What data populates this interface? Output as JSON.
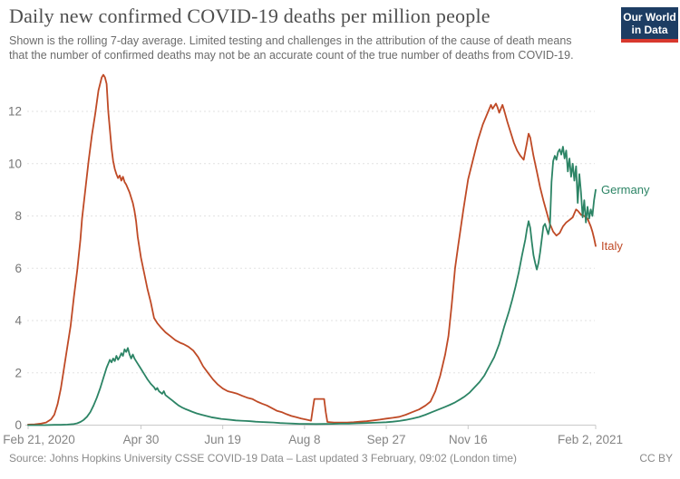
{
  "header": {
    "title": "Daily new confirmed COVID-19 deaths per million people",
    "subtitle_line1": "Shown is the rolling 7-day average. Limited testing and challenges in the attribution of the cause of death means",
    "subtitle_line2": "that the number of confirmed deaths may not be an accurate count of the true number of deaths from COVID-19.",
    "logo_line1": "Our World",
    "logo_line2": "in Data",
    "logo_bg_color": "#1d3d63",
    "logo_stripe_color": "#d8382e"
  },
  "footer": {
    "source": "Source: Johns Hopkins University CSSE COVID-19 Data – Last updated 3 February, 09:02 (London time)",
    "license": "CC BY"
  },
  "chart_data": {
    "type": "line",
    "title": "Daily new confirmed COVID-19 deaths per million people",
    "x_axis": {
      "unit": "date",
      "start_date": "Feb 21, 2020",
      "end_date": "Feb 2, 2021",
      "ticks": [
        {
          "label": "Feb 21, 2020",
          "day": 0
        },
        {
          "label": "Apr 30",
          "day": 69
        },
        {
          "label": "Jun 19",
          "day": 119
        },
        {
          "label": "Aug 8",
          "day": 169
        },
        {
          "label": "Sep 27",
          "day": 219
        },
        {
          "label": "Nov 16",
          "day": 269
        },
        {
          "label": "Feb 2, 2021",
          "day": 347
        }
      ]
    },
    "y_axis": {
      "ticks": [
        0,
        2,
        4,
        6,
        8,
        10,
        12
      ],
      "range": [
        0,
        13.4
      ],
      "gridlines": true
    },
    "legend_position": "end-of-line-labels",
    "series": [
      {
        "name": "Italy",
        "color": "#bf4a26",
        "points": [
          [
            0,
            0.02
          ],
          [
            4,
            0.03
          ],
          [
            8,
            0.06
          ],
          [
            11,
            0.1
          ],
          [
            14,
            0.22
          ],
          [
            16,
            0.4
          ],
          [
            18,
            0.8
          ],
          [
            20,
            1.4
          ],
          [
            22,
            2.2
          ],
          [
            24,
            3.0
          ],
          [
            26,
            3.8
          ],
          [
            28,
            4.9
          ],
          [
            30,
            5.9
          ],
          [
            32,
            7.1
          ],
          [
            33,
            7.9
          ],
          [
            35,
            9.0
          ],
          [
            37,
            10.1
          ],
          [
            39,
            11.1
          ],
          [
            41,
            11.9
          ],
          [
            43,
            12.8
          ],
          [
            45,
            13.3
          ],
          [
            46,
            13.4
          ],
          [
            47,
            13.3
          ],
          [
            48,
            13.05
          ],
          [
            49,
            12.0
          ],
          [
            50,
            11.3
          ],
          [
            51,
            10.6
          ],
          [
            52,
            10.1
          ],
          [
            53,
            9.8
          ],
          [
            54,
            9.6
          ],
          [
            55,
            9.45
          ],
          [
            56,
            9.55
          ],
          [
            57,
            9.35
          ],
          [
            58,
            9.5
          ],
          [
            59,
            9.3
          ],
          [
            60,
            9.2
          ],
          [
            62,
            8.9
          ],
          [
            64,
            8.5
          ],
          [
            65,
            8.2
          ],
          [
            66,
            7.8
          ],
          [
            67,
            7.2
          ],
          [
            69,
            6.4
          ],
          [
            71,
            5.8
          ],
          [
            73,
            5.2
          ],
          [
            75,
            4.7
          ],
          [
            77,
            4.1
          ],
          [
            79,
            3.9
          ],
          [
            81,
            3.75
          ],
          [
            84,
            3.55
          ],
          [
            87,
            3.4
          ],
          [
            90,
            3.25
          ],
          [
            93,
            3.15
          ],
          [
            95,
            3.1
          ],
          [
            98,
            3.0
          ],
          [
            101,
            2.85
          ],
          [
            104,
            2.6
          ],
          [
            107,
            2.25
          ],
          [
            110,
            2.0
          ],
          [
            113,
            1.75
          ],
          [
            116,
            1.55
          ],
          [
            119,
            1.4
          ],
          [
            122,
            1.3
          ],
          [
            125,
            1.25
          ],
          [
            128,
            1.2
          ],
          [
            131,
            1.12
          ],
          [
            134,
            1.05
          ],
          [
            137,
            1.0
          ],
          [
            140,
            0.9
          ],
          [
            143,
            0.82
          ],
          [
            146,
            0.75
          ],
          [
            149,
            0.65
          ],
          [
            152,
            0.55
          ],
          [
            155,
            0.5
          ],
          [
            158,
            0.42
          ],
          [
            161,
            0.35
          ],
          [
            164,
            0.3
          ],
          [
            167,
            0.25
          ],
          [
            170,
            0.21
          ],
          [
            173,
            0.17
          ],
          [
            174,
            0.6
          ],
          [
            175,
            1.0
          ],
          [
            181,
            1.0
          ],
          [
            182,
            0.5
          ],
          [
            183,
            0.12
          ],
          [
            187,
            0.1
          ],
          [
            191,
            0.1
          ],
          [
            195,
            0.1
          ],
          [
            199,
            0.11
          ],
          [
            203,
            0.13
          ],
          [
            207,
            0.15
          ],
          [
            211,
            0.18
          ],
          [
            215,
            0.21
          ],
          [
            219,
            0.25
          ],
          [
            223,
            0.28
          ],
          [
            227,
            0.32
          ],
          [
            231,
            0.4
          ],
          [
            235,
            0.5
          ],
          [
            239,
            0.6
          ],
          [
            243,
            0.75
          ],
          [
            246,
            0.9
          ],
          [
            249,
            1.3
          ],
          [
            252,
            1.9
          ],
          [
            255,
            2.7
          ],
          [
            257,
            3.4
          ],
          [
            259,
            4.6
          ],
          [
            261,
            6.0
          ],
          [
            263,
            6.9
          ],
          [
            266,
            8.2
          ],
          [
            269,
            9.4
          ],
          [
            272,
            10.15
          ],
          [
            275,
            10.9
          ],
          [
            278,
            11.5
          ],
          [
            281,
            11.95
          ],
          [
            283,
            12.25
          ],
          [
            284,
            12.1
          ],
          [
            286,
            12.3
          ],
          [
            287,
            12.15
          ],
          [
            288,
            11.95
          ],
          [
            290,
            12.25
          ],
          [
            291,
            12.05
          ],
          [
            293,
            11.6
          ],
          [
            295,
            11.2
          ],
          [
            297,
            10.8
          ],
          [
            299,
            10.5
          ],
          [
            301,
            10.3
          ],
          [
            303,
            10.15
          ],
          [
            305,
            10.8
          ],
          [
            306,
            11.15
          ],
          [
            307,
            11.0
          ],
          [
            309,
            10.3
          ],
          [
            311,
            9.7
          ],
          [
            313,
            9.1
          ],
          [
            315,
            8.6
          ],
          [
            317,
            8.15
          ],
          [
            319,
            7.7
          ],
          [
            321,
            7.4
          ],
          [
            323,
            7.25
          ],
          [
            325,
            7.35
          ],
          [
            327,
            7.6
          ],
          [
            329,
            7.75
          ],
          [
            331,
            7.85
          ],
          [
            333,
            7.95
          ],
          [
            334,
            8.1
          ],
          [
            335,
            8.25
          ],
          [
            336,
            8.2
          ],
          [
            338,
            8.05
          ],
          [
            340,
            8.0
          ],
          [
            342,
            7.9
          ],
          [
            344,
            7.6
          ],
          [
            345,
            7.4
          ],
          [
            346,
            7.15
          ],
          [
            347,
            6.85
          ]
        ]
      },
      {
        "name": "Germany",
        "color": "#2c8465",
        "points": [
          [
            0,
            0
          ],
          [
            10,
            0
          ],
          [
            16,
            0.01
          ],
          [
            20,
            0.01
          ],
          [
            24,
            0.02
          ],
          [
            28,
            0.04
          ],
          [
            30,
            0.07
          ],
          [
            32,
            0.12
          ],
          [
            34,
            0.2
          ],
          [
            36,
            0.32
          ],
          [
            38,
            0.5
          ],
          [
            40,
            0.75
          ],
          [
            42,
            1.05
          ],
          [
            44,
            1.4
          ],
          [
            46,
            1.8
          ],
          [
            48,
            2.2
          ],
          [
            49,
            2.35
          ],
          [
            50,
            2.5
          ],
          [
            51,
            2.4
          ],
          [
            52,
            2.55
          ],
          [
            53,
            2.45
          ],
          [
            54,
            2.65
          ],
          [
            55,
            2.5
          ],
          [
            56,
            2.6
          ],
          [
            57,
            2.75
          ],
          [
            58,
            2.65
          ],
          [
            59,
            2.9
          ],
          [
            60,
            2.8
          ],
          [
            61,
            2.95
          ],
          [
            62,
            2.7
          ],
          [
            63,
            2.55
          ],
          [
            64,
            2.7
          ],
          [
            65,
            2.55
          ],
          [
            66,
            2.45
          ],
          [
            67,
            2.35
          ],
          [
            68,
            2.25
          ],
          [
            69,
            2.15
          ],
          [
            71,
            1.95
          ],
          [
            73,
            1.75
          ],
          [
            75,
            1.58
          ],
          [
            77,
            1.45
          ],
          [
            78,
            1.35
          ],
          [
            79,
            1.42
          ],
          [
            80,
            1.3
          ],
          [
            82,
            1.2
          ],
          [
            83,
            1.3
          ],
          [
            84,
            1.15
          ],
          [
            86,
            1.05
          ],
          [
            88,
            0.95
          ],
          [
            90,
            0.85
          ],
          [
            92,
            0.75
          ],
          [
            94,
            0.68
          ],
          [
            96,
            0.62
          ],
          [
            98,
            0.57
          ],
          [
            100,
            0.52
          ],
          [
            103,
            0.45
          ],
          [
            106,
            0.4
          ],
          [
            109,
            0.35
          ],
          [
            112,
            0.3
          ],
          [
            115,
            0.27
          ],
          [
            118,
            0.24
          ],
          [
            121,
            0.22
          ],
          [
            124,
            0.2
          ],
          [
            127,
            0.18
          ],
          [
            130,
            0.17
          ],
          [
            133,
            0.16
          ],
          [
            136,
            0.15
          ],
          [
            139,
            0.13
          ],
          [
            142,
            0.12
          ],
          [
            146,
            0.11
          ],
          [
            150,
            0.1
          ],
          [
            154,
            0.08
          ],
          [
            158,
            0.07
          ],
          [
            162,
            0.06
          ],
          [
            166,
            0.05
          ],
          [
            171,
            0.045
          ],
          [
            176,
            0.04
          ],
          [
            181,
            0.045
          ],
          [
            186,
            0.05
          ],
          [
            191,
            0.055
          ],
          [
            196,
            0.06
          ],
          [
            201,
            0.07
          ],
          [
            206,
            0.08
          ],
          [
            211,
            0.09
          ],
          [
            215,
            0.1
          ],
          [
            219,
            0.11
          ],
          [
            223,
            0.13
          ],
          [
            227,
            0.16
          ],
          [
            231,
            0.2
          ],
          [
            235,
            0.25
          ],
          [
            239,
            0.31
          ],
          [
            243,
            0.4
          ],
          [
            247,
            0.5
          ],
          [
            251,
            0.6
          ],
          [
            255,
            0.7
          ],
          [
            258,
            0.78
          ],
          [
            261,
            0.87
          ],
          [
            264,
            0.98
          ],
          [
            267,
            1.1
          ],
          [
            270,
            1.25
          ],
          [
            273,
            1.45
          ],
          [
            276,
            1.65
          ],
          [
            279,
            1.9
          ],
          [
            282,
            2.25
          ],
          [
            285,
            2.6
          ],
          [
            288,
            3.1
          ],
          [
            291,
            3.75
          ],
          [
            294,
            4.35
          ],
          [
            296,
            4.8
          ],
          [
            298,
            5.3
          ],
          [
            300,
            5.85
          ],
          [
            302,
            6.5
          ],
          [
            304,
            7.1
          ],
          [
            305,
            7.5
          ],
          [
            306,
            7.8
          ],
          [
            307,
            7.55
          ],
          [
            308,
            7.0
          ],
          [
            309,
            6.5
          ],
          [
            310,
            6.2
          ],
          [
            311,
            5.95
          ],
          [
            312,
            6.2
          ],
          [
            313,
            6.6
          ],
          [
            314,
            7.1
          ],
          [
            315,
            7.6
          ],
          [
            316,
            7.7
          ],
          [
            317,
            7.5
          ],
          [
            318,
            7.3
          ],
          [
            319,
            7.6
          ],
          [
            320,
            9.3
          ],
          [
            321,
            10.1
          ],
          [
            322,
            10.3
          ],
          [
            323,
            10.15
          ],
          [
            324,
            10.45
          ],
          [
            325,
            10.55
          ],
          [
            326,
            10.35
          ],
          [
            327,
            10.65
          ],
          [
            328,
            10.2
          ],
          [
            329,
            10.5
          ],
          [
            330,
            9.7
          ],
          [
            331,
            10.2
          ],
          [
            332,
            9.5
          ],
          [
            333,
            10.0
          ],
          [
            334,
            9.35
          ],
          [
            335,
            9.9
          ],
          [
            336,
            8.5
          ],
          [
            337,
            9.6
          ],
          [
            338,
            8.9
          ],
          [
            339,
            7.95
          ],
          [
            340,
            8.6
          ],
          [
            341,
            7.75
          ],
          [
            342,
            8.35
          ],
          [
            343,
            7.9
          ],
          [
            344,
            8.25
          ],
          [
            345,
            8.0
          ],
          [
            346,
            8.6
          ],
          [
            347,
            9.0
          ]
        ]
      }
    ]
  }
}
